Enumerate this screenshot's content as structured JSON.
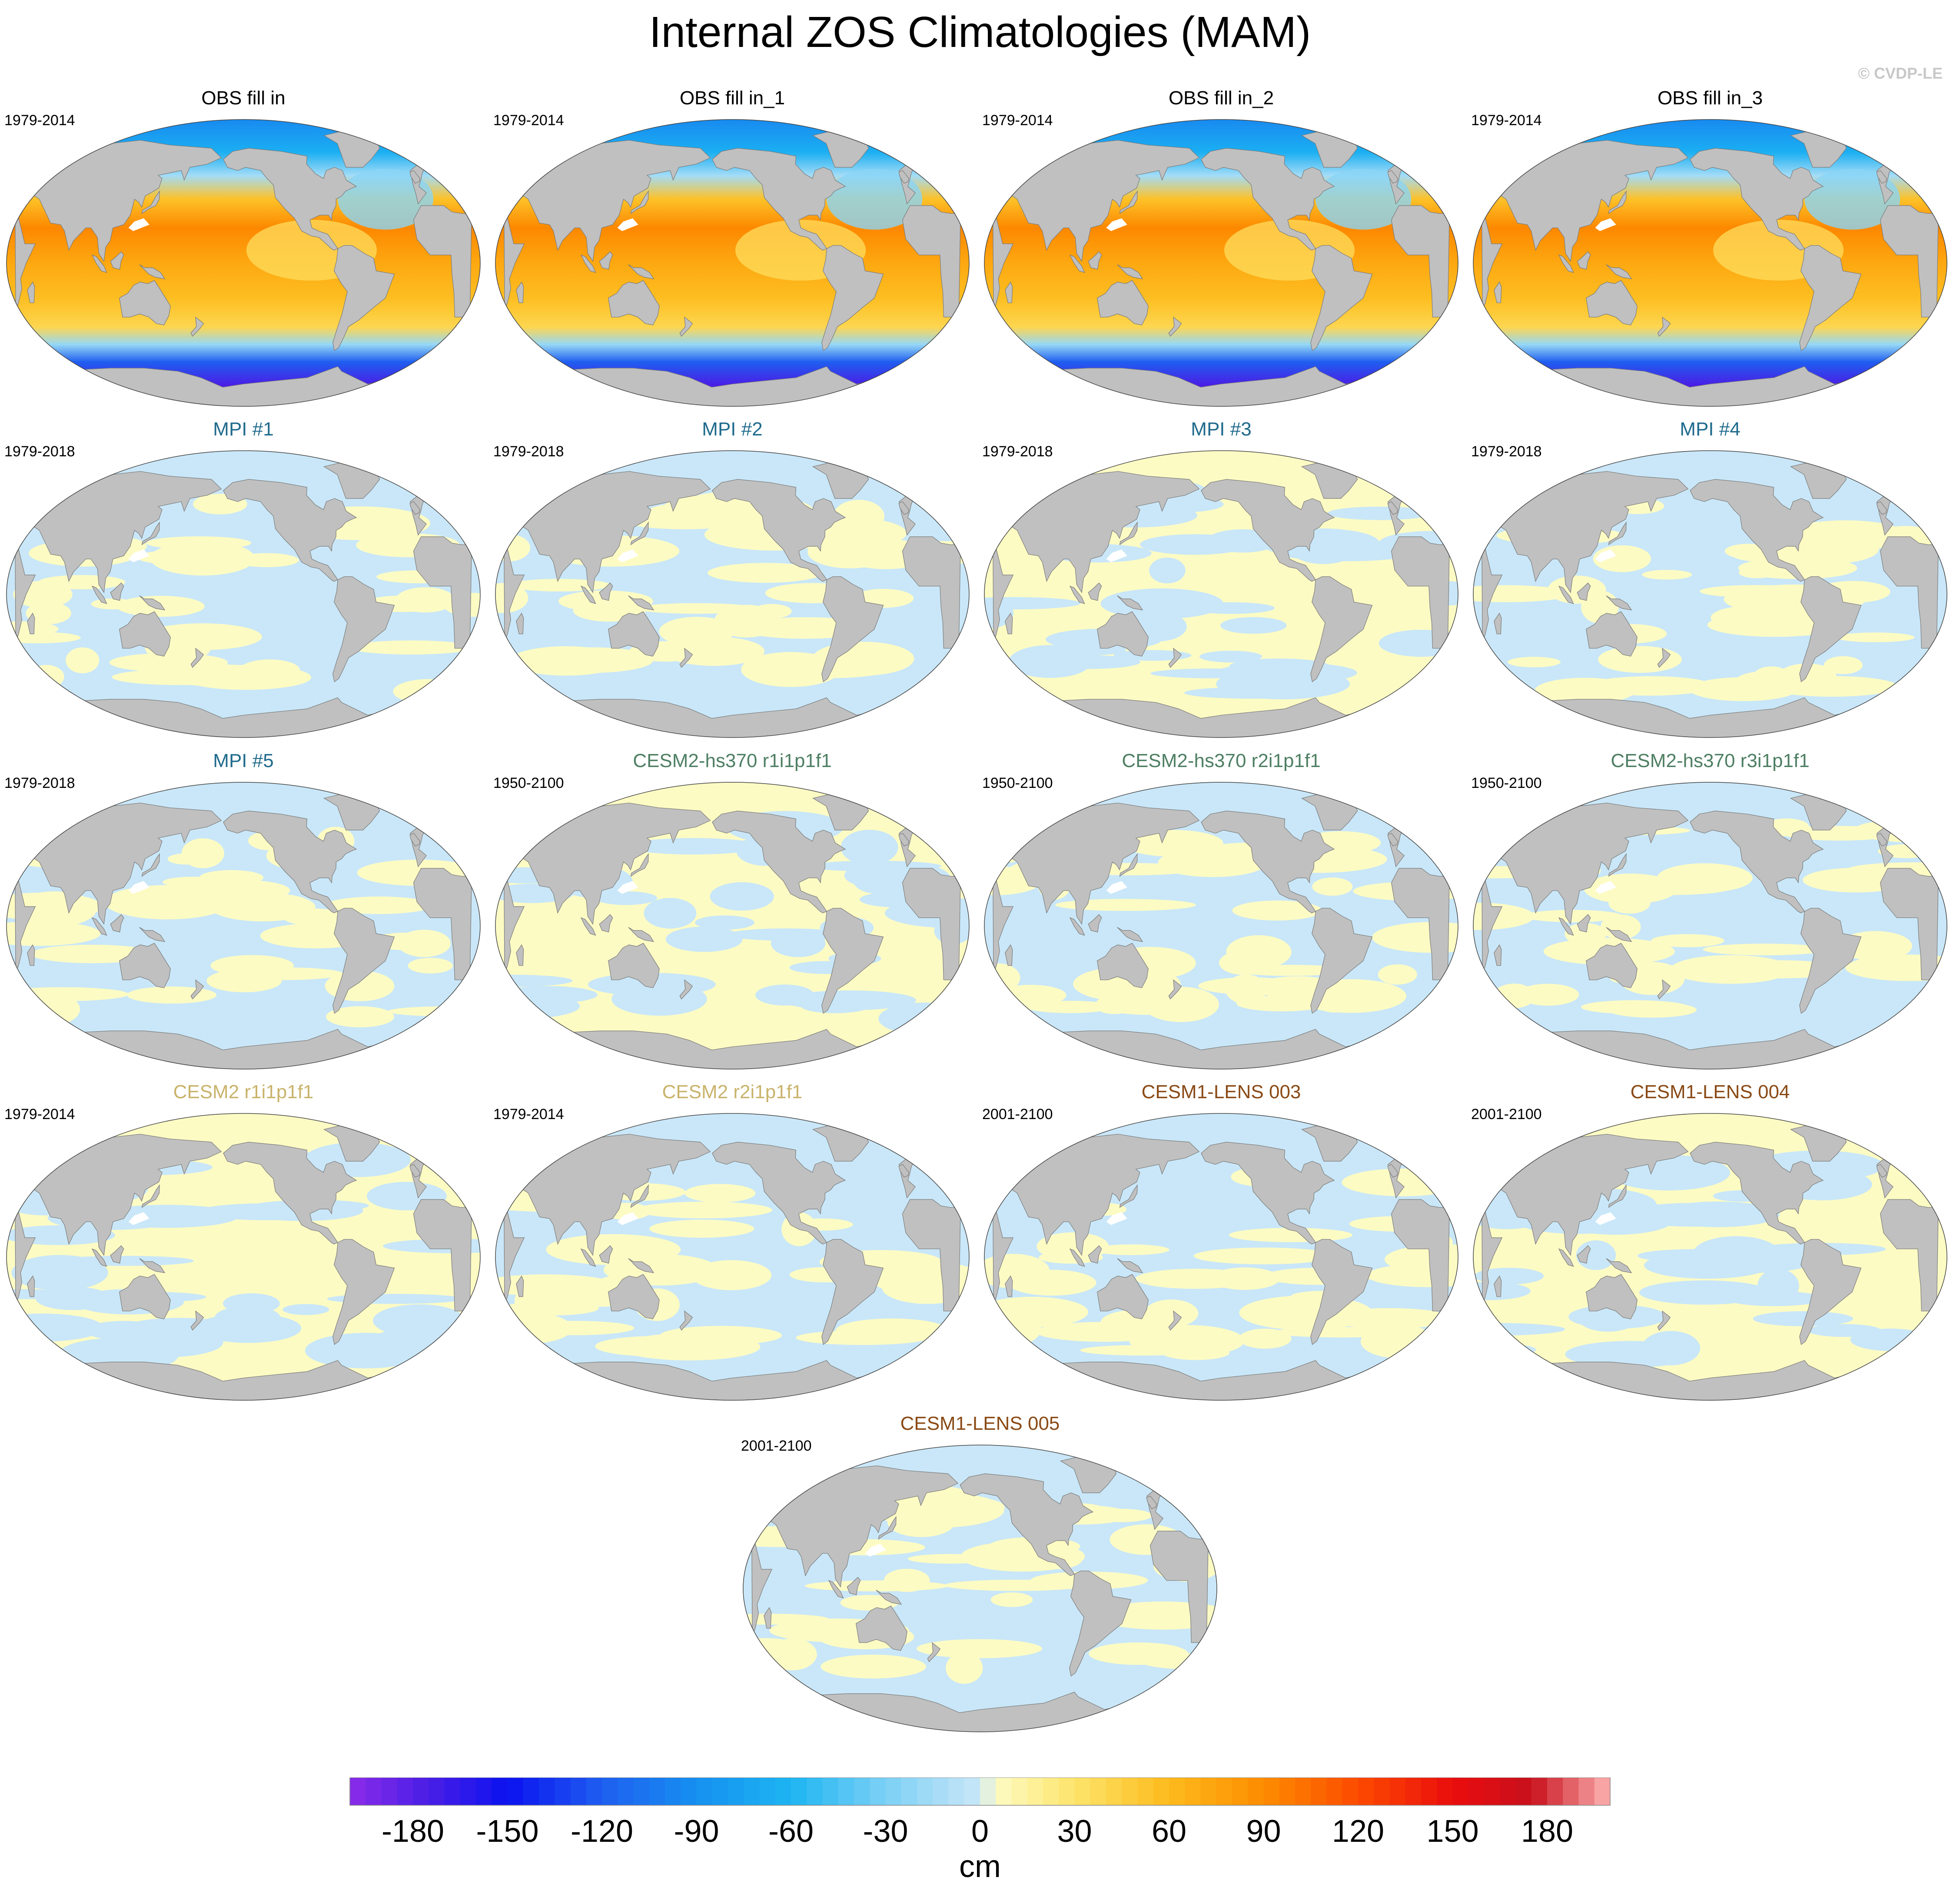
{
  "title": "Internal ZOS Climatologies (MAM)",
  "credit": "© CVDP-LE",
  "colors": {
    "land": "#c0c0c0",
    "coast": "#7a7a7a",
    "pos_small": "#fdfbc4",
    "neg_small": "#c9e7f8",
    "obs_title": "#000000",
    "mpi_title": "#1f6a8c",
    "hs370_title": "#4e7f63",
    "cesm2_title": "#c9b36b",
    "lens_title": "#8a4a16"
  },
  "panels": [
    {
      "title": "OBS fill in",
      "period": "1979-2014",
      "group": "obs"
    },
    {
      "title": "OBS fill in_1",
      "period": "1979-2014",
      "group": "obs"
    },
    {
      "title": "OBS fill in_2",
      "period": "1979-2014",
      "group": "obs"
    },
    {
      "title": "OBS fill in_3",
      "period": "1979-2014",
      "group": "obs"
    },
    {
      "title": "MPI #1",
      "period": "1979-2018",
      "group": "mpi"
    },
    {
      "title": "MPI #2",
      "period": "1979-2018",
      "group": "mpi"
    },
    {
      "title": "MPI #3",
      "period": "1979-2018",
      "group": "mpi"
    },
    {
      "title": "MPI #4",
      "period": "1979-2018",
      "group": "mpi"
    },
    {
      "title": "MPI #5",
      "period": "1979-2018",
      "group": "mpi"
    },
    {
      "title": "CESM2-hs370 r1i1p1f1",
      "period": "1950-2100",
      "group": "hs370"
    },
    {
      "title": "CESM2-hs370 r2i1p1f1",
      "period": "1950-2100",
      "group": "hs370"
    },
    {
      "title": "CESM2-hs370 r3i1p1f1",
      "period": "1950-2100",
      "group": "hs370"
    },
    {
      "title": "CESM2 r1i1p1f1",
      "period": "1979-2014",
      "group": "cesm2"
    },
    {
      "title": "CESM2 r2i1p1f1",
      "period": "1979-2014",
      "group": "cesm2"
    },
    {
      "title": "CESM1-LENS 003",
      "period": "2001-2100",
      "group": "lens"
    },
    {
      "title": "CESM1-LENS 004",
      "period": "2001-2100",
      "group": "lens"
    },
    {
      "title": "CESM1-LENS 005",
      "period": "2001-2100",
      "group": "lens"
    }
  ],
  "colorbar": {
    "unit": "cm",
    "min": -200,
    "max": 200,
    "step": 5,
    "ticks": [
      -180,
      -150,
      -120,
      -90,
      -60,
      -30,
      0,
      30,
      60,
      90,
      120,
      150,
      180
    ],
    "tick_labels": [
      "-180",
      "-150",
      "-120",
      "-90",
      "-60",
      "-30",
      "0",
      "30",
      "60",
      "90",
      "120",
      "150",
      "180"
    ],
    "stops": [
      {
        "v": -200,
        "c": "#8a2be8"
      },
      {
        "v": -175,
        "c": "#4a1ee6"
      },
      {
        "v": -150,
        "c": "#0b12f0"
      },
      {
        "v": -120,
        "c": "#1f5ef0"
      },
      {
        "v": -90,
        "c": "#1690f0"
      },
      {
        "v": -60,
        "c": "#1cb5f2"
      },
      {
        "v": -30,
        "c": "#7cd0f5"
      },
      {
        "v": 0,
        "c": "#c9e7f8"
      },
      {
        "v": 5,
        "c": "#fdfbc4"
      },
      {
        "v": 30,
        "c": "#fde46a"
      },
      {
        "v": 60,
        "c": "#fdbb1c"
      },
      {
        "v": 90,
        "c": "#fd8c00"
      },
      {
        "v": 120,
        "c": "#fc4a00"
      },
      {
        "v": 150,
        "c": "#ea0d0d"
      },
      {
        "v": 175,
        "c": "#c8101c"
      },
      {
        "v": 200,
        "c": "#fdb3b3"
      }
    ]
  }
}
